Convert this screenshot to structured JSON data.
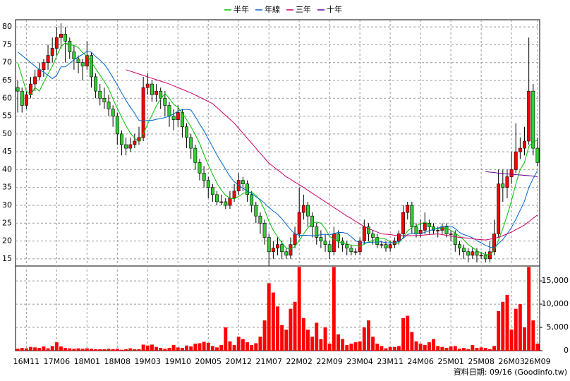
{
  "chart_data": {
    "type": "candlestick",
    "categories": [
      null,
      null,
      "16M11",
      null,
      null,
      null,
      null,
      null,
      null,
      "17M06",
      null,
      null,
      null,
      null,
      null,
      null,
      "18M01",
      null,
      null,
      null,
      null,
      null,
      null,
      "18M08",
      null,
      null,
      null,
      null,
      null,
      null,
      "19M03",
      null,
      null,
      null,
      null,
      null,
      null,
      "19M10",
      null,
      null,
      null,
      null,
      null,
      null,
      "20M05",
      null,
      null,
      null,
      null,
      null,
      null,
      "20M12",
      null,
      null,
      null,
      null,
      null,
      null,
      "21M07",
      null,
      null,
      null,
      null,
      null,
      null,
      "22M02",
      null,
      null,
      null,
      null,
      null,
      null,
      "22M09",
      null,
      null,
      null,
      null,
      null,
      null,
      "23M04",
      null,
      null,
      null,
      null,
      null,
      null,
      "23M11",
      null,
      null,
      null,
      null,
      null,
      null,
      "24M06",
      null,
      null,
      null,
      null,
      null,
      null,
      "25M01",
      null,
      null,
      null,
      null,
      null,
      null,
      "25M08",
      null,
      null,
      null,
      null,
      null,
      null,
      "26M03",
      null,
      null,
      null,
      null,
      null,
      "26M09"
    ],
    "open": [
      63,
      62,
      58,
      61,
      64,
      66,
      68,
      70,
      72,
      74,
      77,
      78,
      76,
      73,
      71,
      70,
      69,
      72,
      66,
      62,
      60,
      59,
      57,
      55,
      50,
      47,
      46,
      47,
      48,
      49,
      63,
      64,
      61,
      62,
      60,
      58,
      55,
      54,
      56,
      52,
      49,
      46,
      42,
      39,
      37,
      35,
      33,
      31,
      31,
      30,
      32,
      34,
      37,
      36,
      33,
      30,
      27,
      25,
      21,
      17,
      18,
      19,
      17,
      16,
      19,
      22,
      28,
      30,
      27,
      24,
      21,
      20,
      19,
      17,
      22,
      20,
      19,
      18,
      17,
      17,
      20,
      24,
      22,
      21,
      19,
      19,
      18,
      19,
      20,
      22,
      28,
      30,
      24,
      22,
      23,
      25,
      24,
      23,
      23,
      24,
      22,
      22,
      19,
      18,
      17,
      16,
      17,
      16,
      16,
      15,
      17,
      22,
      36,
      35,
      38,
      40,
      45,
      46,
      48,
      62,
      46
    ],
    "high": [
      65,
      63,
      62,
      66,
      68,
      70,
      71,
      75,
      77,
      80,
      81,
      80,
      77,
      75,
      72,
      71,
      76,
      73,
      67,
      64,
      63,
      61,
      58,
      56,
      51,
      49,
      49,
      50,
      52,
      66,
      67,
      65,
      64,
      63,
      62,
      59,
      57,
      58,
      57,
      53,
      50,
      47,
      43,
      41,
      38,
      36,
      34,
      33,
      32,
      34,
      36,
      39,
      38,
      37,
      34,
      31,
      28,
      26,
      22,
      20,
      21,
      20,
      18,
      21,
      24,
      35,
      33,
      31,
      28,
      25,
      23,
      22,
      20,
      24,
      23,
      21,
      20,
      19,
      18,
      21,
      26,
      25,
      23,
      22,
      20,
      20,
      20,
      21,
      23,
      30,
      31,
      31,
      25,
      26,
      28,
      26,
      25,
      24,
      25,
      25,
      23,
      23,
      20,
      19,
      18,
      18,
      18,
      17,
      17,
      20,
      26,
      40,
      40,
      40,
      45,
      53,
      49,
      52,
      77,
      64,
      49
    ],
    "low": [
      56,
      56,
      57,
      60,
      62,
      65,
      66,
      68,
      70,
      72,
      74,
      70,
      71,
      68,
      67,
      65,
      68,
      63,
      60,
      58,
      57,
      55,
      52,
      47,
      44,
      44,
      45,
      46,
      47,
      48,
      61,
      59,
      59,
      57,
      55,
      52,
      51,
      52,
      49,
      46,
      43,
      40,
      37,
      35,
      32,
      31,
      30,
      30,
      29,
      29,
      31,
      33,
      34,
      31,
      28,
      25,
      22,
      19,
      13,
      15,
      16,
      15,
      15,
      15,
      18,
      21,
      26,
      24,
      21,
      19,
      18,
      17,
      15,
      16,
      18,
      17,
      16,
      16,
      16,
      16,
      19,
      20,
      19,
      18,
      18,
      17,
      17,
      18,
      19,
      21,
      26,
      22,
      21,
      21,
      22,
      22,
      22,
      21,
      22,
      21,
      20,
      17,
      16,
      15,
      14,
      15,
      14,
      15,
      14,
      14,
      16,
      21,
      31,
      32,
      36,
      39,
      43,
      44,
      47,
      44,
      41
    ],
    "close": [
      62,
      58,
      61,
      64,
      66,
      68,
      70,
      72,
      74,
      77,
      78,
      76,
      73,
      71,
      70,
      69,
      72,
      66,
      62,
      60,
      59,
      57,
      55,
      50,
      47,
      46,
      47,
      48,
      49,
      63,
      64,
      61,
      62,
      60,
      58,
      55,
      54,
      56,
      52,
      49,
      46,
      42,
      39,
      37,
      35,
      33,
      31,
      31,
      30,
      32,
      34,
      37,
      36,
      33,
      30,
      27,
      25,
      21,
      17,
      18,
      19,
      17,
      16,
      19,
      22,
      28,
      30,
      27,
      24,
      21,
      20,
      19,
      17,
      22,
      20,
      19,
      18,
      17,
      17,
      20,
      24,
      22,
      21,
      19,
      19,
      18,
      19,
      20,
      22,
      28,
      30,
      24,
      22,
      23,
      25,
      24,
      23,
      23,
      24,
      22,
      22,
      19,
      18,
      17,
      16,
      17,
      16,
      16,
      15,
      17,
      22,
      36,
      35,
      38,
      40,
      45,
      46,
      48,
      62,
      46,
      42
    ],
    "volume": [
      400,
      600,
      500,
      800,
      700,
      600,
      900,
      500,
      1000,
      1800,
      900,
      600,
      500,
      400,
      500,
      400,
      500,
      400,
      300,
      300,
      300,
      400,
      300,
      400,
      200,
      300,
      500,
      300,
      300,
      1300,
      1100,
      1300,
      800,
      600,
      400,
      600,
      1200,
      700,
      600,
      1100,
      900,
      1500,
      1600,
      1900,
      1700,
      1000,
      700,
      1200,
      5000,
      2000,
      1200,
      3000,
      2500,
      1800,
      1200,
      1600,
      3000,
      6500,
      14500,
      12500,
      9500,
      5500,
      4500,
      9000,
      10500,
      18000,
      7000,
      4500,
      3000,
      6000,
      2500,
      5000,
      1500,
      18000,
      3500,
      2500,
      1200,
      1500,
      1800,
      2000,
      5000,
      6500,
      3000,
      1500,
      1000,
      500,
      800,
      800,
      1000,
      7000,
      7500,
      4000,
      2000,
      1500,
      1200,
      1800,
      2500,
      1000,
      800,
      600,
      900,
      1000,
      400,
      600,
      300,
      1200,
      600,
      700,
      600,
      300,
      1000,
      8500,
      10500,
      12000,
      4500,
      9000,
      10000,
      5000,
      18000,
      6500,
      1500
    ],
    "up_color": "#ff0000",
    "down_color": "#33cc33",
    "volume_color": "#ff0000",
    "series": [
      {
        "name": "半年",
        "color": "#00c000",
        "values": [
          70,
          66,
          62,
          61,
          63,
          62,
          64.5,
          66.8,
          69,
          71.8,
          74.5,
          75.5,
          75,
          74.8,
          74.2,
          72.8,
          71.8,
          70.2,
          68.3,
          66.5,
          64.7,
          62.7,
          59.8,
          57.2,
          54.7,
          52.3,
          50.3,
          48.8,
          47.8,
          50,
          52.8,
          55.3,
          57.8,
          59.8,
          61.3,
          60,
          58.3,
          57.5,
          55.8,
          54,
          52,
          49.8,
          47.3,
          44.2,
          41.3,
          38.7,
          36.2,
          34.3,
          32.8,
          32,
          31.8,
          32.5,
          33.3,
          33.7,
          33.7,
          32.8,
          31.3,
          28.7,
          25.5,
          23,
          21.2,
          19.5,
          18,
          17.7,
          18.5,
          20.2,
          22,
          23.7,
          25,
          25.3,
          25,
          23.5,
          21.3,
          20.5,
          19.8,
          19.5,
          19.2,
          18.8,
          18.8,
          18.5,
          19.2,
          19.7,
          20.2,
          20.5,
          20.8,
          20.5,
          19.7,
          19.3,
          19.5,
          21,
          22.8,
          23.8,
          24.3,
          24.8,
          25.3,
          24.7,
          23.5,
          23.3,
          23.7,
          23.5,
          23,
          22.2,
          21.3,
          20.3,
          19,
          18.2,
          17.2,
          16.7,
          16.2,
          16.2,
          17.2,
          20.3,
          23.5,
          27.2,
          31.3,
          36,
          40,
          42,
          46.5,
          47.8,
          48.2
        ]
      },
      {
        "name": "年線",
        "color": "#0066cc",
        "values": [
          73,
          72,
          71,
          70,
          69,
          68,
          67.3,
          66.4,
          65.5,
          66.4,
          68.8,
          68.8,
          69.8,
          70.8,
          71.6,
          72.3,
          73.2,
          72.9,
          71.7,
          70.7,
          69.5,
          67.8,
          65.8,
          63.7,
          61.5,
          59.4,
          57.5,
          55.8,
          53.8,
          53.6,
          53.8,
          53.8,
          54.1,
          54.3,
          54.6,
          55,
          55.6,
          56.4,
          56.8,
          56.9,
          56.7,
          54.9,
          52.8,
          50.9,
          48.6,
          46.4,
          44.1,
          42.1,
          40.1,
          38.1,
          36.6,
          35.6,
          34.8,
          34,
          33.3,
          32.4,
          31.6,
          30.6,
          29.4,
          28.4,
          27.5,
          26.2,
          24.7,
          23.2,
          22,
          21.6,
          21.6,
          21.6,
          21.5,
          21.5,
          21.8,
          21.9,
          21.7,
          22.1,
          22.4,
          22.4,
          22.1,
          21.2,
          20.1,
          19.5,
          19.5,
          19.6,
          19.7,
          19.7,
          19.8,
          19.5,
          19.5,
          19.5,
          19.9,
          20.8,
          21.8,
          22.2,
          22,
          22.1,
          22.4,
          22.9,
          23.2,
          23.6,
          24,
          24.2,
          24.2,
          23.5,
          22.4,
          21.8,
          21.4,
          20.9,
          20.1,
          19.5,
          18.8,
          18.3,
          18.1,
          19.3,
          20.4,
          22,
          23.8,
          26.1,
          28.6,
          31.2,
          35,
          37.5,
          39.8
        ]
      },
      {
        "name": "三年",
        "color": "#cc0066",
        "values": [
          null,
          null,
          null,
          null,
          null,
          null,
          null,
          null,
          null,
          null,
          null,
          null,
          null,
          null,
          null,
          null,
          null,
          null,
          null,
          null,
          null,
          null,
          null,
          null,
          null,
          68,
          67.6,
          67.2,
          66.8,
          66.4,
          66,
          65.6,
          65.2,
          64.8,
          64.4,
          64,
          63.5,
          63,
          62.5,
          62,
          61.5,
          60.9,
          60.3,
          59.7,
          59.1,
          58.5,
          57.4,
          56.3,
          55.2,
          54.1,
          53,
          51.6,
          50.2,
          48.8,
          47.4,
          46,
          44.6,
          43.2,
          41.8,
          40.9,
          39.9,
          39,
          38,
          37.3,
          36.5,
          35.8,
          35,
          34.2,
          33.4,
          32.6,
          31.8,
          31,
          30.2,
          29.4,
          28.6,
          27.8,
          27,
          26.3,
          25.5,
          24.8,
          24,
          23.5,
          23,
          22.5,
          22,
          21.9,
          21.8,
          21.6,
          21.5,
          21.5,
          21.5,
          21.5,
          21.5,
          21.6,
          21.7,
          21.8,
          21.9,
          22,
          21.8,
          21.6,
          21.4,
          21.2,
          21,
          20.9,
          20.8,
          20.6,
          20.5,
          20.4,
          20.3,
          20.5,
          20.8,
          21,
          21.5,
          22,
          22.5,
          23.2,
          23.8,
          24.5,
          25.4,
          26.4,
          27.3
        ]
      },
      {
        "name": "十年",
        "color": "#660099",
        "values": [
          null,
          null,
          null,
          null,
          null,
          null,
          null,
          null,
          null,
          null,
          null,
          null,
          null,
          null,
          null,
          null,
          null,
          null,
          null,
          null,
          null,
          null,
          null,
          null,
          null,
          null,
          null,
          null,
          null,
          null,
          null,
          null,
          null,
          null,
          null,
          null,
          null,
          null,
          null,
          null,
          null,
          null,
          null,
          null,
          null,
          null,
          null,
          null,
          null,
          null,
          null,
          null,
          null,
          null,
          null,
          null,
          null,
          null,
          null,
          null,
          null,
          null,
          null,
          null,
          null,
          null,
          null,
          null,
          null,
          null,
          null,
          null,
          null,
          null,
          null,
          null,
          null,
          null,
          null,
          null,
          null,
          null,
          null,
          null,
          null,
          null,
          null,
          null,
          null,
          null,
          null,
          null,
          null,
          null,
          null,
          null,
          null,
          null,
          null,
          null,
          null,
          null,
          null,
          null,
          null,
          null,
          null,
          null,
          39.5,
          39.3,
          39.2,
          39,
          38.9,
          38.8,
          38.7,
          38.6,
          38.5,
          38.4,
          38.3,
          38.2,
          38
        ]
      }
    ],
    "ylim": [
      13,
      82
    ],
    "yticks": [
      15,
      20,
      25,
      30,
      35,
      40,
      45,
      50,
      55,
      60,
      65,
      70,
      75,
      80
    ],
    "y2lim": [
      0,
      18200
    ],
    "y2ticks": [
      0,
      {
        "value": 5000,
        "label": "5,000"
      },
      {
        "value": 10000,
        "label": "10,000"
      },
      {
        "value": 15000,
        "label": "15,000"
      }
    ],
    "grid": true,
    "footnote": "資料日期: 09/16 (Goodinfo.tw)"
  }
}
